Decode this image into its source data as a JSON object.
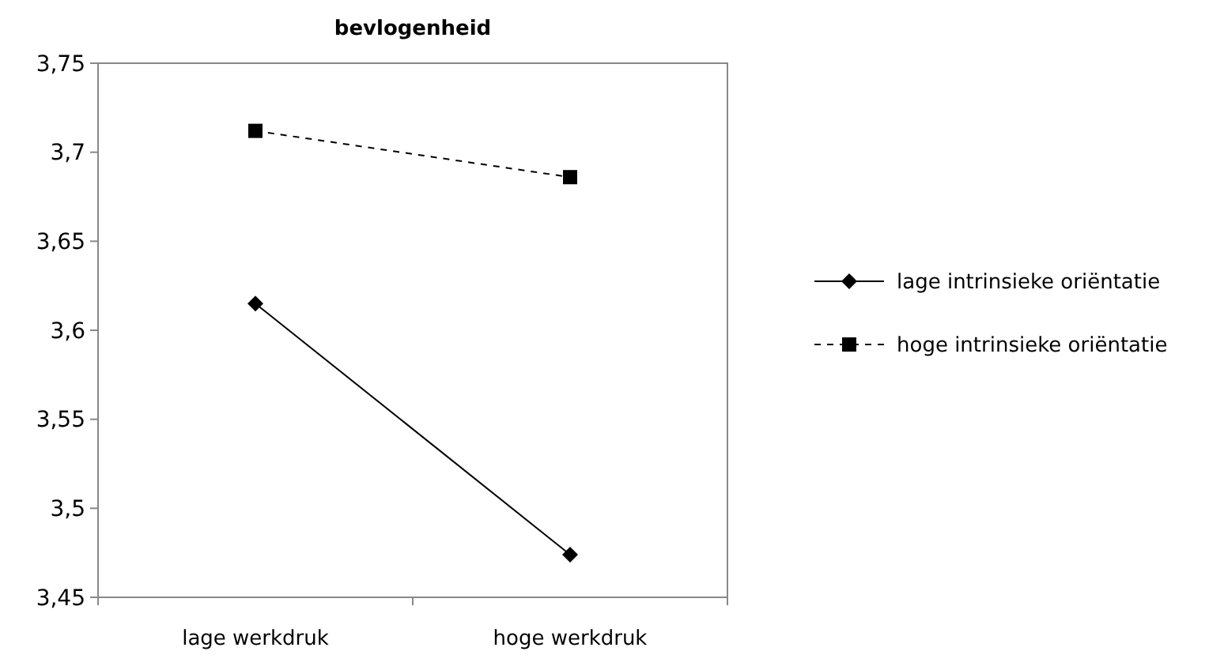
{
  "chart_data": {
    "type": "line",
    "title": "bevlogenheid",
    "categories": [
      "lage werkdruk",
      "hoge werkdruk"
    ],
    "series": [
      {
        "name": "lage intrinsieke oriëntatie",
        "color": "#000000",
        "values": [
          3.615,
          3.474
        ],
        "marker": "diamond",
        "line_style": "solid"
      },
      {
        "name": "hoge intrinsieke oriëntatie",
        "color": "#000000",
        "values": [
          3.712,
          3.686
        ],
        "marker": "square",
        "line_style": "dashed"
      }
    ],
    "ylim": [
      3.45,
      3.75
    ],
    "yticks": [
      {
        "value": 3.45,
        "label": "3,45"
      },
      {
        "value": 3.5,
        "label": "3,5"
      },
      {
        "value": 3.55,
        "label": "3,55"
      },
      {
        "value": 3.6,
        "label": "3,6"
      },
      {
        "value": 3.65,
        "label": "3,65"
      },
      {
        "value": 3.7,
        "label": "3,7"
      },
      {
        "value": 3.75,
        "label": "3,75"
      }
    ],
    "grid": false,
    "legend": "right"
  }
}
